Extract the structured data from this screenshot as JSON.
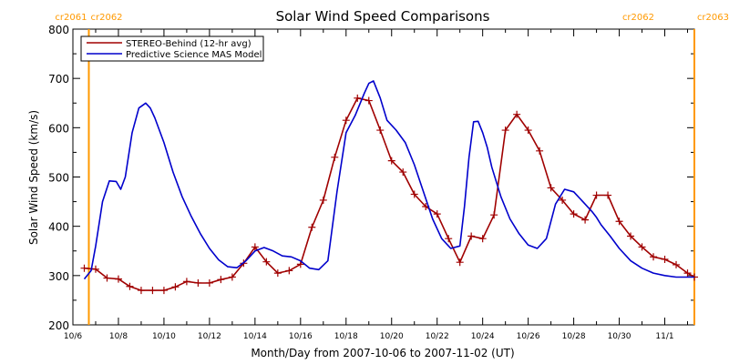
{
  "chart_data": {
    "type": "line",
    "title": "Solar Wind Speed Comparisons",
    "xlabel": "Month/Day from 2007-10-06 to 2007-11-02 (UT)",
    "ylabel": "Solar Wind Speed (km/s)",
    "xlim": [
      0,
      27.3
    ],
    "ylim": [
      200,
      800
    ],
    "grid": false,
    "legend_position": "top-left",
    "x_ticks": [
      {
        "x": 0,
        "label": "10/6"
      },
      {
        "x": 2,
        "label": "10/8"
      },
      {
        "x": 4,
        "label": "10/10"
      },
      {
        "x": 6,
        "label": "10/12"
      },
      {
        "x": 8,
        "label": "10/14"
      },
      {
        "x": 10,
        "label": "10/16"
      },
      {
        "x": 12,
        "label": "10/18"
      },
      {
        "x": 14,
        "label": "10/20"
      },
      {
        "x": 16,
        "label": "10/22"
      },
      {
        "x": 18,
        "label": "10/24"
      },
      {
        "x": 20,
        "label": "10/26"
      },
      {
        "x": 22,
        "label": "10/28"
      },
      {
        "x": 24,
        "label": "10/30"
      },
      {
        "x": 26,
        "label": "11/1"
      }
    ],
    "y_ticks": [
      200,
      300,
      400,
      500,
      600,
      700,
      800
    ],
    "markers": [
      {
        "x": 0.7,
        "left_label": "cr2061",
        "right_label": "cr2062",
        "color": "#ff9900"
      },
      {
        "x": 27.3,
        "left_label": "cr2062",
        "right_label": "cr2063",
        "color": "#ff9900"
      }
    ],
    "series": [
      {
        "name": "STEREO-Behind (12-hr avg)",
        "color": "#a00000",
        "marker": "plus",
        "x": [
          0.5,
          1.0,
          1.5,
          2.0,
          2.5,
          3.0,
          3.5,
          4.0,
          4.5,
          5.0,
          5.5,
          6.0,
          6.5,
          7.0,
          7.5,
          8.0,
          8.5,
          9.0,
          9.5,
          10.0,
          10.5,
          11.0,
          11.5,
          12.0,
          12.5,
          13.0,
          13.5,
          14.0,
          14.5,
          15.0,
          15.5,
          16.0,
          16.5,
          17.0,
          17.5,
          18.0,
          18.5,
          19.0,
          19.5,
          20.0,
          20.5,
          21.0,
          21.5,
          22.0,
          22.5,
          23.0,
          23.5,
          24.0,
          24.5,
          25.0,
          25.5,
          26.0,
          26.5,
          27.0,
          27.3
        ],
        "y": [
          315,
          313,
          295,
          293,
          278,
          270,
          270,
          270,
          277,
          288,
          285,
          285,
          292,
          297,
          325,
          358,
          328,
          305,
          310,
          323,
          398,
          453,
          540,
          615,
          660,
          655,
          595,
          533,
          510,
          465,
          440,
          425,
          375,
          327,
          380,
          375,
          423,
          595,
          627,
          595,
          553,
          478,
          453,
          425,
          413,
          463,
          463,
          410,
          380,
          358,
          338,
          333,
          322,
          305,
          297
        ]
      },
      {
        "name": "Predictive Science MAS Model",
        "color": "#0000cc",
        "marker": "none",
        "x": [
          0.5,
          0.8,
          1.0,
          1.3,
          1.6,
          1.9,
          2.1,
          2.3,
          2.6,
          2.9,
          3.2,
          3.4,
          3.6,
          4.0,
          4.4,
          4.8,
          5.2,
          5.6,
          6.0,
          6.4,
          6.8,
          7.2,
          7.6,
          8.0,
          8.4,
          8.8,
          9.2,
          9.6,
          10.0,
          10.4,
          10.8,
          11.2,
          11.6,
          12.0,
          12.4,
          12.8,
          13.0,
          13.2,
          13.5,
          13.8,
          14.2,
          14.6,
          15.0,
          15.4,
          15.8,
          16.2,
          16.6,
          17.0,
          17.2,
          17.4,
          17.6,
          17.8,
          18.0,
          18.2,
          18.4,
          18.8,
          19.2,
          19.6,
          20.0,
          20.4,
          20.8,
          21.2,
          21.6,
          22.0,
          22.4,
          22.8,
          23.0,
          23.2,
          23.6,
          24.0,
          24.5,
          25.0,
          25.5,
          26.0,
          26.5,
          27.0,
          27.3
        ],
        "y": [
          293,
          310,
          360,
          450,
          492,
          491,
          475,
          500,
          590,
          640,
          650,
          640,
          620,
          570,
          510,
          460,
          420,
          385,
          355,
          332,
          318,
          316,
          330,
          350,
          357,
          350,
          340,
          338,
          330,
          315,
          312,
          330,
          470,
          590,
          625,
          670,
          690,
          695,
          660,
          615,
          595,
          570,
          525,
          470,
          415,
          375,
          355,
          360,
          440,
          540,
          612,
          613,
          590,
          560,
          520,
          460,
          415,
          385,
          362,
          355,
          375,
          445,
          475,
          470,
          450,
          430,
          418,
          403,
          380,
          355,
          330,
          315,
          305,
          300,
          297,
          297,
          297
        ]
      }
    ]
  }
}
